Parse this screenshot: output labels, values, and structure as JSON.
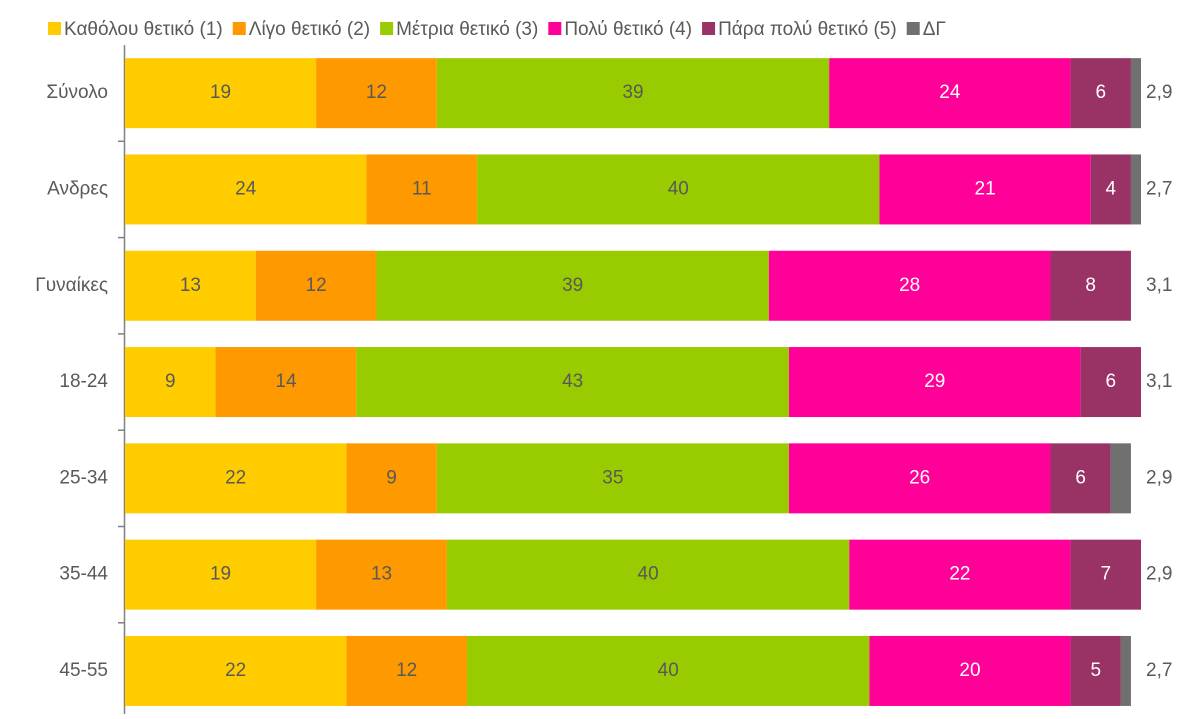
{
  "chart_data": {
    "type": "stacked_bar_horizontal",
    "categories": [
      "Σύνολο",
      "Ανδρες",
      "Γυναίκες",
      "18-24",
      "25-34",
      "35-44",
      "45-55"
    ],
    "series": [
      {
        "name": "Καθόλου θετικό (1)",
        "color": "#ffcc00",
        "label_color": "#595959",
        "values": [
          19,
          24,
          13,
          9,
          22,
          19,
          22
        ]
      },
      {
        "name": "Λίγο θετικό (2)",
        "color": "#ff9900",
        "label_color": "#595959",
        "values": [
          12,
          11,
          12,
          14,
          9,
          13,
          12
        ]
      },
      {
        "name": "Μέτρια θετικό (3)",
        "color": "#99cc00",
        "label_color": "#595959",
        "values": [
          39,
          40,
          39,
          43,
          35,
          40,
          40
        ]
      },
      {
        "name": "Πολύ θετικό (4)",
        "color": "#ff0099",
        "label_color": "#ffffff",
        "values": [
          24,
          21,
          28,
          29,
          26,
          22,
          20
        ]
      },
      {
        "name": "Πάρα πολύ θετικό (5)",
        "color": "#993366",
        "label_color": "#ffffff",
        "values": [
          6,
          4,
          8,
          6,
          6,
          7,
          5
        ]
      },
      {
        "name": "ΔΓ",
        "color": "#707070",
        "values": [
          1,
          1,
          0,
          0,
          2,
          0,
          1
        ]
      }
    ],
    "averages": {
      "values": [
        2.9,
        2.7,
        3.1,
        3.1,
        2.9,
        2.9,
        2.7
      ],
      "value_labels": [
        "2,9",
        "2,7",
        "3,1",
        "3,1",
        "2,9",
        "2,9",
        "2,7"
      ]
    },
    "xlim": [
      0,
      101
    ],
    "legend": "top"
  }
}
